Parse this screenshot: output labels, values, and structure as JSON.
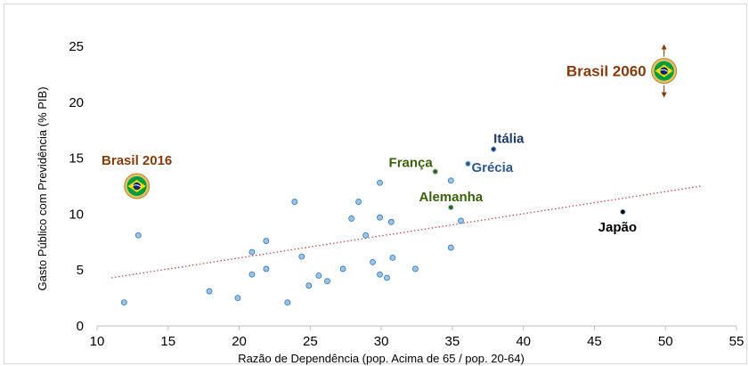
{
  "colors": {
    "point_fill": "#9dc3e6",
    "point_stroke": "#2e75b6",
    "trendline": "#c0504d",
    "axis": "#bfbfbf",
    "brown_label": "#843c0c",
    "green_label": "#3a5f0b",
    "blue_label": "#1f3864",
    "black_label": "#000000",
    "flag_green": "#009c3b",
    "flag_yellow": "#ffdf00",
    "flag_blue": "#002776"
  },
  "icons": {
    "brazil_flag": "brazil-flag-icon",
    "range_arrow": "double-arrow-icon"
  },
  "chart_data": {
    "type": "scatter",
    "title": "",
    "xlabel": "Razão de Dependência (pop. Acima de 65 / pop. 20-64)",
    "ylabel": "Gasto Público com Previdência (% PIB)",
    "xlim": [
      10,
      55
    ],
    "ylim": [
      0,
      25
    ],
    "x_ticks": [
      "10",
      "15",
      "20",
      "25",
      "30",
      "35",
      "40",
      "45",
      "50",
      "55"
    ],
    "y_ticks": [
      "0",
      "5",
      "10",
      "15",
      "20",
      "25"
    ],
    "grid": false,
    "legend": "none",
    "points": [
      {
        "x": 11.9,
        "y": 2.1
      },
      {
        "x": 12.9,
        "y": 8.1
      },
      {
        "x": 17.9,
        "y": 3.1
      },
      {
        "x": 19.9,
        "y": 2.5
      },
      {
        "x": 20.9,
        "y": 6.6
      },
      {
        "x": 20.9,
        "y": 4.6
      },
      {
        "x": 21.9,
        "y": 7.6
      },
      {
        "x": 21.9,
        "y": 5.1
      },
      {
        "x": 23.4,
        "y": 2.1
      },
      {
        "x": 23.9,
        "y": 11.1
      },
      {
        "x": 24.4,
        "y": 6.2
      },
      {
        "x": 24.9,
        "y": 3.6
      },
      {
        "x": 25.6,
        "y": 4.5
      },
      {
        "x": 26.2,
        "y": 4.0
      },
      {
        "x": 27.3,
        "y": 5.1
      },
      {
        "x": 27.9,
        "y": 9.6
      },
      {
        "x": 28.4,
        "y": 11.1
      },
      {
        "x": 28.9,
        "y": 8.1
      },
      {
        "x": 29.4,
        "y": 5.7
      },
      {
        "x": 29.9,
        "y": 12.8
      },
      {
        "x": 29.9,
        "y": 9.7
      },
      {
        "x": 29.9,
        "y": 4.6
      },
      {
        "x": 30.4,
        "y": 4.3
      },
      {
        "x": 30.7,
        "y": 9.3
      },
      {
        "x": 30.8,
        "y": 6.1
      },
      {
        "x": 32.4,
        "y": 5.1
      },
      {
        "x": 34.9,
        "y": 13.0
      },
      {
        "x": 34.9,
        "y": 7.0
      },
      {
        "x": 35.6,
        "y": 9.4
      }
    ],
    "labeled_points": [
      {
        "label": "França",
        "x": 33.8,
        "y": 13.8,
        "color": "#3a5f0b"
      },
      {
        "label": "Alemanha",
        "x": 34.9,
        "y": 10.6,
        "color": "#3a5f0b"
      },
      {
        "label": "Grécia",
        "x": 36.1,
        "y": 14.5,
        "color": "#2e5a8c"
      },
      {
        "label": "Itália",
        "x": 37.9,
        "y": 15.8,
        "color": "#1f3864"
      },
      {
        "label": "Japão",
        "x": 47.0,
        "y": 10.2,
        "color": "#000000"
      }
    ],
    "flag_points": [
      {
        "label": "Brasil 2016",
        "x": 12.8,
        "y": 12.5,
        "color": "#843c0c"
      },
      {
        "label": "Brasil 2060",
        "x": 49.9,
        "y": 22.8,
        "color": "#843c0c"
      }
    ],
    "trendline": {
      "x": [
        11,
        52.5
      ],
      "y": [
        4.3,
        12.5
      ],
      "style": "dotted"
    }
  }
}
